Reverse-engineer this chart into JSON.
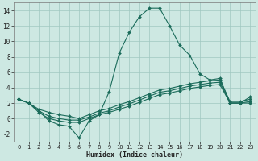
{
  "title": "",
  "xlabel": "Humidex (Indice chaleur)",
  "xlim": [
    -0.5,
    23.5
  ],
  "ylim": [
    -3,
    15
  ],
  "xticks": [
    0,
    1,
    2,
    3,
    4,
    5,
    6,
    7,
    8,
    9,
    10,
    11,
    12,
    13,
    14,
    15,
    16,
    17,
    18,
    19,
    20,
    21,
    22,
    23
  ],
  "yticks": [
    -2,
    0,
    2,
    4,
    6,
    8,
    10,
    12,
    14
  ],
  "bg_color": "#cde8e2",
  "grid_color": "#a0c8c0",
  "line_color": "#1a6b5a",
  "curve_main": {
    "x": [
      0,
      1,
      2,
      3,
      4,
      5,
      6,
      7,
      8,
      9,
      10,
      11,
      12,
      13,
      14,
      15,
      16,
      17,
      18,
      19,
      20,
      21,
      22,
      23
    ],
    "y": [
      2.5,
      2.0,
      1.0,
      -0.3,
      -0.8,
      -1.0,
      -2.5,
      -0.3,
      0.5,
      3.5,
      8.5,
      11.2,
      13.2,
      14.3,
      14.3,
      12.0,
      9.5,
      8.2,
      5.8,
      5.0,
      5.2,
      2.0,
      2.0,
      2.8
    ]
  },
  "curve_a": {
    "x": [
      0,
      1,
      2,
      3,
      4,
      5,
      6,
      7,
      8,
      9,
      10,
      11,
      12,
      13,
      14,
      15,
      16,
      17,
      18,
      19,
      20,
      21,
      22,
      23
    ],
    "y": [
      2.5,
      2.0,
      1.2,
      0.8,
      0.5,
      0.3,
      0.0,
      0.5,
      1.0,
      1.3,
      1.8,
      2.2,
      2.7,
      3.2,
      3.7,
      3.9,
      4.2,
      4.5,
      4.7,
      4.9,
      5.0,
      2.2,
      2.2,
      2.5
    ]
  },
  "curve_b": {
    "x": [
      0,
      1,
      2,
      3,
      4,
      5,
      6,
      7,
      8,
      9,
      10,
      11,
      12,
      13,
      14,
      15,
      16,
      17,
      18,
      19,
      20,
      21,
      22,
      23
    ],
    "y": [
      2.5,
      2.0,
      1.0,
      0.3,
      0.0,
      -0.2,
      -0.2,
      0.2,
      0.7,
      1.0,
      1.5,
      1.9,
      2.4,
      2.9,
      3.4,
      3.6,
      3.9,
      4.2,
      4.4,
      4.6,
      4.7,
      2.0,
      2.0,
      2.2
    ]
  },
  "curve_c": {
    "x": [
      0,
      1,
      2,
      3,
      4,
      5,
      6,
      7,
      8,
      9,
      10,
      11,
      12,
      13,
      14,
      15,
      16,
      17,
      18,
      19,
      20,
      21,
      22,
      23
    ],
    "y": [
      2.5,
      2.0,
      0.8,
      0.0,
      -0.3,
      -0.5,
      -0.5,
      0.0,
      0.5,
      0.8,
      1.2,
      1.6,
      2.1,
      2.6,
      3.1,
      3.3,
      3.6,
      3.9,
      4.1,
      4.3,
      4.4,
      2.0,
      2.0,
      2.0
    ]
  }
}
